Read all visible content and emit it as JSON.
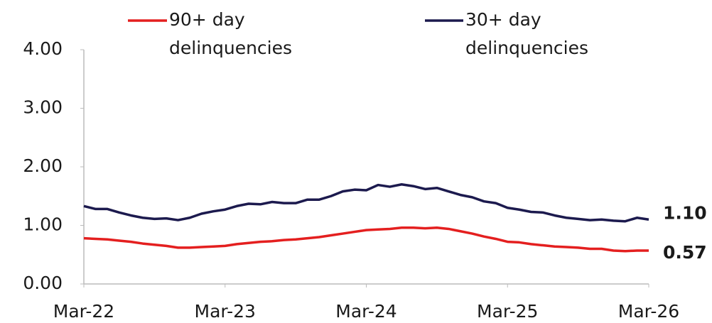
{
  "chart_data": {
    "type": "line",
    "categories": [
      "Mar-22",
      null,
      null,
      null,
      null,
      null,
      null,
      null,
      null,
      null,
      null,
      null,
      "Mar-23",
      null,
      null,
      null,
      null,
      null,
      null,
      null,
      null,
      null,
      null,
      null,
      "Mar-24",
      null,
      null,
      null,
      null,
      null,
      null,
      null,
      null,
      null,
      null,
      null,
      "Mar-25",
      null,
      null,
      null,
      null,
      null,
      null,
      null,
      null,
      null,
      null,
      null,
      "Mar-26"
    ],
    "series": [
      {
        "name": "90+ day delinquencies",
        "color": "#e41f1f",
        "end_label": "0.57",
        "values": [
          0.78,
          0.77,
          0.76,
          0.74,
          0.72,
          0.69,
          0.67,
          0.65,
          0.62,
          0.62,
          0.63,
          0.64,
          0.65,
          0.68,
          0.7,
          0.72,
          0.73,
          0.75,
          0.76,
          0.78,
          0.8,
          0.83,
          0.86,
          0.89,
          0.92,
          0.93,
          0.94,
          0.96,
          0.96,
          0.95,
          0.96,
          0.94,
          0.9,
          0.86,
          0.81,
          0.77,
          0.72,
          0.71,
          0.68,
          0.66,
          0.64,
          0.63,
          0.62,
          0.6,
          0.6,
          0.57,
          0.56,
          0.57,
          0.57
        ]
      },
      {
        "name": "30+ day delinquencies",
        "color": "#1c1a4e",
        "end_label": "1.10",
        "values": [
          1.33,
          1.28,
          1.28,
          1.22,
          1.17,
          1.13,
          1.11,
          1.12,
          1.09,
          1.13,
          1.2,
          1.24,
          1.27,
          1.33,
          1.37,
          1.36,
          1.4,
          1.38,
          1.38,
          1.44,
          1.44,
          1.5,
          1.58,
          1.61,
          1.6,
          1.69,
          1.66,
          1.7,
          1.67,
          1.62,
          1.64,
          1.58,
          1.52,
          1.48,
          1.41,
          1.38,
          1.3,
          1.27,
          1.23,
          1.22,
          1.17,
          1.13,
          1.11,
          1.09,
          1.1,
          1.08,
          1.07,
          1.13,
          1.1
        ]
      }
    ],
    "ylim": [
      0,
      4
    ],
    "yticks": [
      {
        "value": 0,
        "label": "0.00"
      },
      {
        "value": 1,
        "label": "1.00"
      },
      {
        "value": 2,
        "label": "2.00"
      },
      {
        "value": 3,
        "label": "3.00"
      },
      {
        "value": 4,
        "label": "4.00"
      }
    ],
    "grid": false,
    "legend": "top"
  }
}
